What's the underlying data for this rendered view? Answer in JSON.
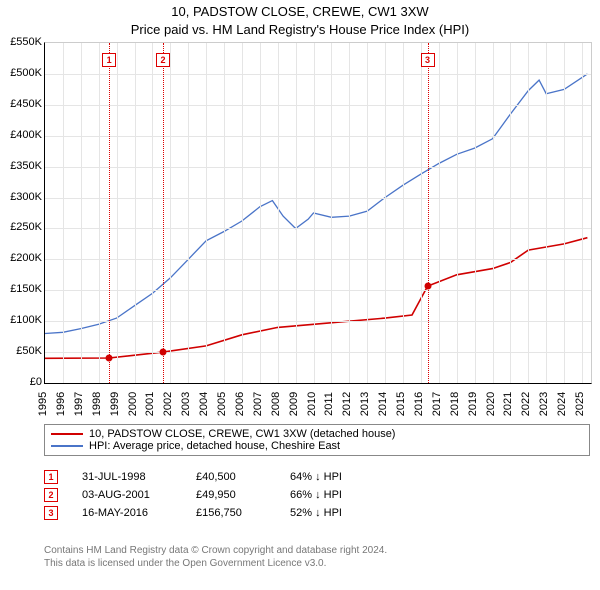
{
  "title": "10, PADSTOW CLOSE, CREWE, CW1 3XW",
  "subtitle": "Price paid vs. HM Land Registry's House Price Index (HPI)",
  "chart": {
    "type": "line",
    "background_color": "#ffffff",
    "grid_color": "#e5e5e5",
    "text_color": "#000000",
    "title_fontsize": 13,
    "axis_fontsize": 11,
    "x_range": [
      1995,
      2025.5
    ],
    "x_ticks": [
      1995,
      1996,
      1997,
      1998,
      1999,
      2000,
      2001,
      2002,
      2003,
      2004,
      2005,
      2006,
      2007,
      2008,
      2009,
      2010,
      2011,
      2012,
      2013,
      2014,
      2015,
      2016,
      2017,
      2018,
      2019,
      2020,
      2021,
      2022,
      2023,
      2024,
      2025
    ],
    "y_range": [
      0,
      550000
    ],
    "y_ticks": [
      {
        "v": 0,
        "label": "£0"
      },
      {
        "v": 50000,
        "label": "£50K"
      },
      {
        "v": 100000,
        "label": "£100K"
      },
      {
        "v": 150000,
        "label": "£150K"
      },
      {
        "v": 200000,
        "label": "£200K"
      },
      {
        "v": 250000,
        "label": "£250K"
      },
      {
        "v": 300000,
        "label": "£300K"
      },
      {
        "v": 350000,
        "label": "£350K"
      },
      {
        "v": 400000,
        "label": "£400K"
      },
      {
        "v": 450000,
        "label": "£450K"
      },
      {
        "v": 500000,
        "label": "£500K"
      },
      {
        "v": 550000,
        "label": "£550K"
      }
    ],
    "series": [
      {
        "name": "price_paid",
        "color": "#d00000",
        "line_width": 1.6,
        "points": [
          [
            1995,
            40000
          ],
          [
            1998.58,
            40500
          ],
          [
            2001.59,
            49950
          ],
          [
            2004,
            60000
          ],
          [
            2006,
            78000
          ],
          [
            2008,
            90000
          ],
          [
            2010,
            95000
          ],
          [
            2012,
            100000
          ],
          [
            2014,
            105000
          ],
          [
            2015.5,
            110000
          ],
          [
            2016.37,
            156750
          ],
          [
            2018,
            175000
          ],
          [
            2020,
            185000
          ],
          [
            2021,
            195000
          ],
          [
            2022,
            215000
          ],
          [
            2023,
            220000
          ],
          [
            2024,
            225000
          ],
          [
            2025.3,
            235000
          ]
        ],
        "sale_points": [
          {
            "x": 1998.58,
            "y": 40500
          },
          {
            "x": 2001.59,
            "y": 49950
          },
          {
            "x": 2016.37,
            "y": 156750
          }
        ]
      },
      {
        "name": "hpi",
        "color": "#4a74c8",
        "line_width": 1.3,
        "points": [
          [
            1995,
            80000
          ],
          [
            1996,
            82000
          ],
          [
            1997,
            88000
          ],
          [
            1998,
            95000
          ],
          [
            1999,
            105000
          ],
          [
            2000,
            125000
          ],
          [
            2001,
            145000
          ],
          [
            2002,
            170000
          ],
          [
            2003,
            200000
          ],
          [
            2004,
            230000
          ],
          [
            2005,
            245000
          ],
          [
            2006,
            262000
          ],
          [
            2007,
            285000
          ],
          [
            2007.7,
            295000
          ],
          [
            2008.3,
            270000
          ],
          [
            2009,
            250000
          ],
          [
            2009.7,
            265000
          ],
          [
            2010,
            275000
          ],
          [
            2011,
            268000
          ],
          [
            2012,
            270000
          ],
          [
            2013,
            278000
          ],
          [
            2014,
            300000
          ],
          [
            2015,
            320000
          ],
          [
            2016,
            338000
          ],
          [
            2017,
            355000
          ],
          [
            2018,
            370000
          ],
          [
            2019,
            380000
          ],
          [
            2020,
            395000
          ],
          [
            2021,
            435000
          ],
          [
            2022,
            473000
          ],
          [
            2022.6,
            490000
          ],
          [
            2023,
            468000
          ],
          [
            2024,
            475000
          ],
          [
            2025.3,
            500000
          ]
        ]
      }
    ],
    "markers": [
      {
        "n": "1",
        "x": 1998.58,
        "top": 52,
        "date": "31-JUL-1998",
        "price": "£40,500",
        "pct": "64% ↓ HPI"
      },
      {
        "n": "2",
        "x": 2001.59,
        "top": 52,
        "date": "03-AUG-2001",
        "price": "£49,950",
        "pct": "66% ↓ HPI"
      },
      {
        "n": "3",
        "x": 2016.37,
        "top": 52,
        "date": "16-MAY-2016",
        "price": "£156,750",
        "pct": "52% ↓ HPI"
      }
    ]
  },
  "legend": [
    {
      "color": "#d00000",
      "label": "10, PADSTOW CLOSE, CREWE, CW1 3XW (detached house)"
    },
    {
      "color": "#4a74c8",
      "label": "HPI: Average price, detached house, Cheshire East"
    }
  ],
  "credit": {
    "line1": "Contains HM Land Registry data © Crown copyright and database right 2024.",
    "line2": "This data is licensed under the Open Government Licence v3.0."
  }
}
